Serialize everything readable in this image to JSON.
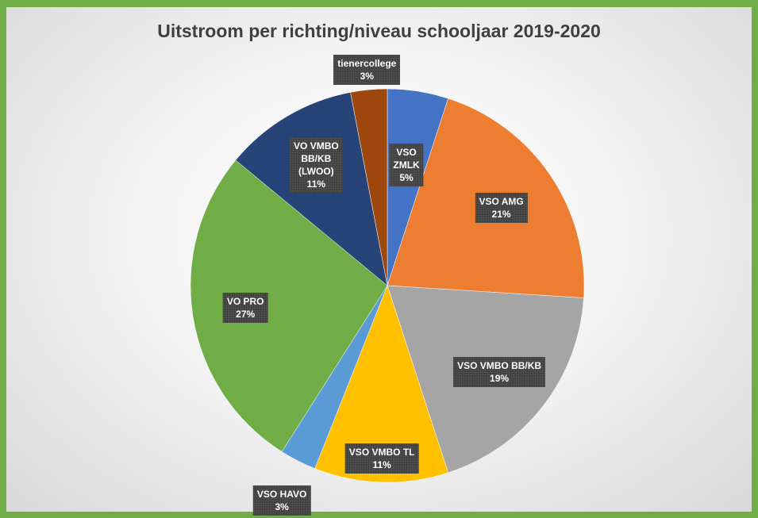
{
  "chart_data": {
    "type": "pie",
    "title": "Uitstroom per richting/niveau schooljaar 2019-2020",
    "slices": [
      {
        "label": [
          "VSO",
          "ZMLK"
        ],
        "percent_label": "5%",
        "value": 5,
        "color": "#4472c4"
      },
      {
        "label": [
          "VSO AMG"
        ],
        "percent_label": "21%",
        "value": 21,
        "color": "#ed7d31"
      },
      {
        "label": [
          "VSO VMBO BB/KB"
        ],
        "percent_label": "19%",
        "value": 19,
        "color": "#a5a5a5"
      },
      {
        "label": [
          "VSO VMBO TL"
        ],
        "percent_label": "11%",
        "value": 11,
        "color": "#ffc000"
      },
      {
        "label": [
          "VSO HAVO"
        ],
        "percent_label": "3%",
        "value": 3,
        "color": "#5b9bd5"
      },
      {
        "label": [
          "VO PRO"
        ],
        "percent_label": "27%",
        "value": 27,
        "color": "#70ad47"
      },
      {
        "label": [
          "VO VMBO",
          "BB/KB",
          "(LWOO)"
        ],
        "percent_label": "11%",
        "value": 11,
        "color": "#264478"
      },
      {
        "label": [
          "tienercollege"
        ],
        "percent_label": "3%",
        "value": 3,
        "color": "#9e480e"
      }
    ],
    "legend": "none"
  }
}
